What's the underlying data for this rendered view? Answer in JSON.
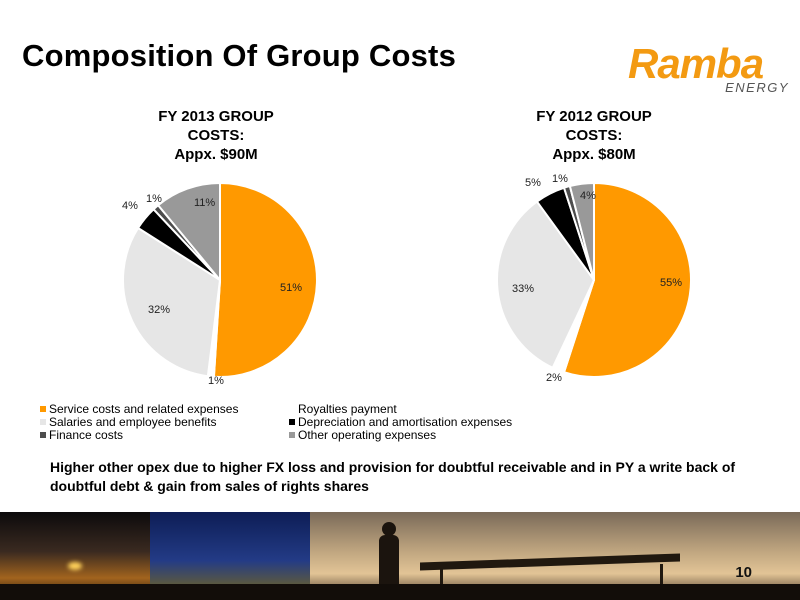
{
  "slide": {
    "title": "Composition Of Group Costs",
    "logo_word": "Ramba",
    "logo_sub": "ENERGY",
    "note": "Higher other opex due to higher FX loss and provision for doubtful receivable and in PY a write back of doubtful debt & gain from sales of rights shares",
    "page_number": "10"
  },
  "legend": [
    {
      "label": "Service costs and related expenses",
      "color": "#ff9900"
    },
    {
      "label": "Royalties payment",
      "color": "#ffffff"
    },
    {
      "label": "Salaries and employee benefits",
      "color": "#e6e6e6"
    },
    {
      "label": "Depreciation and amortisation expenses",
      "color": "#000000"
    },
    {
      "label": "Finance costs",
      "color": "#4d4d4d"
    },
    {
      "label": "Other operating expenses",
      "color": "#999999"
    }
  ],
  "chart_data": [
    {
      "type": "pie",
      "title_lines": [
        "FY 2013 GROUP",
        "COSTS:",
        "Appx. $90M"
      ],
      "categories": [
        "Service costs and related expenses",
        "Royalties payment",
        "Salaries and employee benefits",
        "Depreciation and amortisation expenses",
        "Finance costs",
        "Other operating expenses"
      ],
      "values": [
        51,
        1,
        32,
        4,
        1,
        11
      ],
      "labels": [
        "51%",
        "1%",
        "32%",
        "4%",
        "1%",
        "11%"
      ],
      "colors": [
        "#ff9900",
        "#ffffff",
        "#e6e6e6",
        "#000000",
        "#4d4d4d",
        "#999999"
      ]
    },
    {
      "type": "pie",
      "title_lines": [
        "FY 2012 GROUP",
        "COSTS:",
        "Appx. $80M"
      ],
      "categories": [
        "Service costs and related expenses",
        "Royalties payment",
        "Salaries and employee benefits",
        "Depreciation and amortisation expenses",
        "Finance costs",
        "Other operating expenses"
      ],
      "values": [
        55,
        2,
        33,
        5,
        1,
        4
      ],
      "labels": [
        "55%",
        "2%",
        "33%",
        "5%",
        "1%",
        "4%"
      ],
      "colors": [
        "#ff9900",
        "#ffffff",
        "#e6e6e6",
        "#000000",
        "#4d4d4d",
        "#999999"
      ]
    }
  ]
}
